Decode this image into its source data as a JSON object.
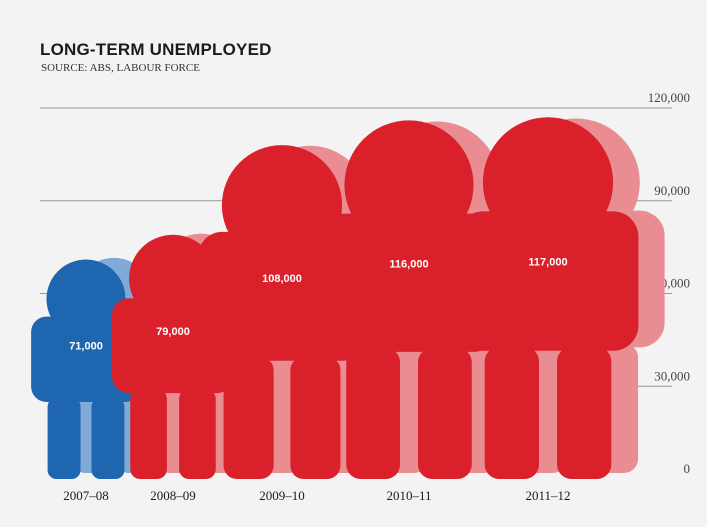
{
  "chart_data": {
    "type": "bar",
    "title": "LONG-TERM UNEMPLOYED",
    "subtitle": "SOURCE: ABS, LABOUR FORCE",
    "categories": [
      "2007–08",
      "2008–09",
      "2009–10",
      "2010–11",
      "2011–12"
    ],
    "values": [
      71000,
      79000,
      108000,
      116000,
      117000
    ],
    "value_labels": [
      "71,000",
      "79,000",
      "108,000",
      "116,000",
      "117,000"
    ],
    "bar_colors": [
      "#1f66b0",
      "#d9202b",
      "#d9202b",
      "#d9202b",
      "#d9202b"
    ],
    "shadow_colors": [
      "#7fa9d6",
      "#ea8d92",
      "#ea8d92",
      "#ea8d92",
      "#ea8d92"
    ],
    "ylim": [
      0,
      120000
    ],
    "yticks": [
      0,
      30000,
      60000,
      90000,
      120000
    ],
    "ytick_labels": [
      "0",
      "30,000",
      "60,000",
      "90,000",
      "120,000"
    ],
    "grid": true,
    "xlabel": "",
    "ylabel": ""
  }
}
